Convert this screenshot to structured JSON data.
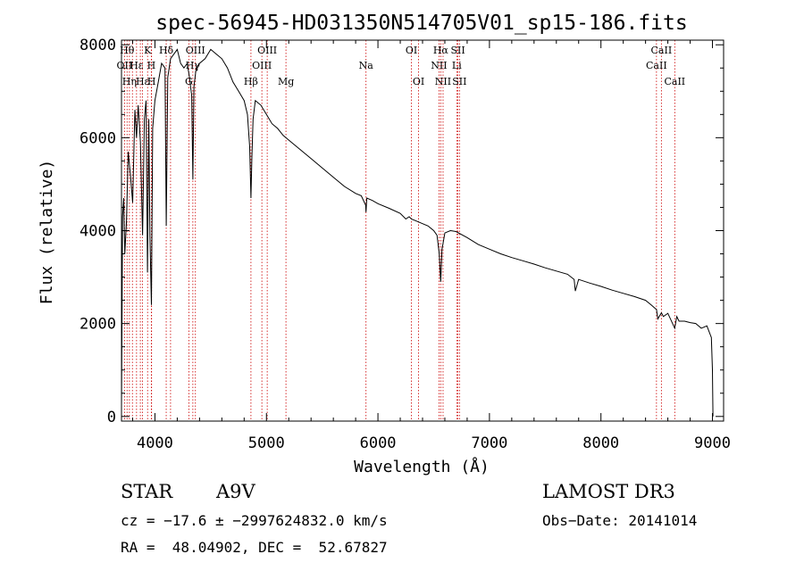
{
  "chart_data": {
    "type": "line",
    "title": "spec-56945-HD031350N514705V01_sp15-186.fits",
    "xlabel": "Wavelength (Å)",
    "ylabel": "Flux (relative)",
    "xlim": [
      3700,
      9100
    ],
    "ylim": [
      -100,
      8100
    ],
    "xticks": [
      4000,
      5000,
      6000,
      7000,
      8000,
      9000
    ],
    "yticks": [
      0,
      2000,
      4000,
      6000,
      8000
    ],
    "series": [
      {
        "name": "spectrum",
        "color": "#000000",
        "x": [
          3700,
          3710,
          3720,
          3730,
          3745,
          3760,
          3780,
          3800,
          3820,
          3835,
          3850,
          3870,
          3889,
          3905,
          3920,
          3933,
          3945,
          3955,
          3968,
          3980,
          4000,
          4030,
          4060,
          4090,
          4101,
          4115,
          4140,
          4170,
          4200,
          4230,
          4260,
          4290,
          4310,
          4330,
          4340,
          4350,
          4370,
          4400,
          4450,
          4500,
          4550,
          4600,
          4650,
          4700,
          4750,
          4800,
          4830,
          4850,
          4861,
          4870,
          4880,
          4900,
          4950,
          5000,
          5050,
          5100,
          5150,
          5200,
          5300,
          5400,
          5500,
          5600,
          5700,
          5800,
          5850,
          5890,
          5893,
          5900,
          5950,
          6000,
          6100,
          6200,
          6250,
          6280,
          6300,
          6350,
          6400,
          6450,
          6500,
          6530,
          6550,
          6563,
          6575,
          6600,
          6650,
          6700,
          6800,
          6900,
          7000,
          7100,
          7200,
          7300,
          7400,
          7500,
          7600,
          7700,
          7760,
          7770,
          7800,
          7900,
          8000,
          8100,
          8200,
          8300,
          8400,
          8450,
          8498,
          8510,
          8542,
          8560,
          8600,
          8662,
          8680,
          8700,
          8750,
          8800,
          8850,
          8900,
          8950,
          8990,
          9000,
          9005
        ],
        "y": [
          200,
          4300,
          4700,
          3500,
          4200,
          5700,
          5200,
          4600,
          6600,
          6000,
          6700,
          5900,
          3900,
          6400,
          6800,
          3100,
          6400,
          3900,
          2400,
          6200,
          6800,
          7200,
          7600,
          7500,
          4100,
          7300,
          7700,
          7800,
          7900,
          7600,
          7500,
          7600,
          7300,
          6900,
          5100,
          7100,
          7500,
          7600,
          7700,
          7900,
          7800,
          7700,
          7500,
          7200,
          7000,
          6800,
          6500,
          5800,
          4700,
          5600,
          6400,
          6800,
          6700,
          6500,
          6300,
          6200,
          6050,
          5950,
          5750,
          5550,
          5350,
          5150,
          4950,
          4800,
          4750,
          4550,
          4400,
          4700,
          4650,
          4580,
          4480,
          4370,
          4250,
          4300,
          4250,
          4200,
          4150,
          4100,
          4000,
          3900,
          3500,
          2900,
          3600,
          3950,
          4000,
          3980,
          3850,
          3700,
          3600,
          3500,
          3420,
          3350,
          3280,
          3200,
          3130,
          3060,
          2950,
          2700,
          2950,
          2870,
          2800,
          2720,
          2650,
          2580,
          2500,
          2400,
          2300,
          2100,
          2230,
          2150,
          2220,
          1900,
          2150,
          2050,
          2050,
          2020,
          2000,
          1900,
          1950,
          1700,
          1000,
          0
        ]
      }
    ],
    "lines": [
      {
        "wavelength": 3727,
        "label": "OII",
        "tier": 2
      },
      {
        "wavelength": 3750,
        "label": "Hθ",
        "tier": 1
      },
      {
        "wavelength": 3771,
        "label": "Hη",
        "tier": 3
      },
      {
        "wavelength": 3798,
        "label": "",
        "tier": 0
      },
      {
        "wavelength": 3835,
        "label": "Hε",
        "tier": 2
      },
      {
        "wavelength": 3869,
        "label": "",
        "tier": 0
      },
      {
        "wavelength": 3889,
        "label": "Hε",
        "tier": 3
      },
      {
        "wavelength": 3934,
        "label": "K",
        "tier": 1
      },
      {
        "wavelength": 3968,
        "label": "H",
        "tier": 2
      },
      {
        "wavelength": 3970,
        "label": "H",
        "tier": 3
      },
      {
        "wavelength": 4101,
        "label": "Hδ",
        "tier": 1
      },
      {
        "wavelength": 4140,
        "label": "",
        "tier": 0
      },
      {
        "wavelength": 4304,
        "label": "G",
        "tier": 3
      },
      {
        "wavelength": 4340,
        "label": "Hγ",
        "tier": 2
      },
      {
        "wavelength": 4363,
        "label": "OIII",
        "tier": 1
      },
      {
        "wavelength": 4861,
        "label": "Hβ",
        "tier": 3
      },
      {
        "wavelength": 4959,
        "label": "OIII",
        "tier": 2
      },
      {
        "wavelength": 5007,
        "label": "OIII",
        "tier": 1
      },
      {
        "wavelength": 5175,
        "label": "Mg",
        "tier": 3
      },
      {
        "wavelength": 5893,
        "label": "Na",
        "tier": 2
      },
      {
        "wavelength": 6300,
        "label": "OI",
        "tier": 1
      },
      {
        "wavelength": 6364,
        "label": "OI",
        "tier": 3
      },
      {
        "wavelength": 6548,
        "label": "NII",
        "tier": 2
      },
      {
        "wavelength": 6563,
        "label": "Hα",
        "tier": 1
      },
      {
        "wavelength": 6584,
        "label": "NII",
        "tier": 3
      },
      {
        "wavelength": 6707,
        "label": "Li",
        "tier": 2
      },
      {
        "wavelength": 6717,
        "label": "SII",
        "tier": 1
      },
      {
        "wavelength": 6731,
        "label": "SII",
        "tier": 3
      },
      {
        "wavelength": 8498,
        "label": "CaII",
        "tier": 2
      },
      {
        "wavelength": 8542,
        "label": "CaII",
        "tier": 1
      },
      {
        "wavelength": 8662,
        "label": "CaII",
        "tier": 3
      }
    ],
    "line_color": "#cc0000"
  },
  "info": {
    "type": "STAR",
    "subclass": "A9V",
    "survey": "LAMOST DR3",
    "cz": "cz = −17.6 ± −2997624832.0 km/s",
    "obs_date": "Obs−Date: 20141014",
    "radec": "RA =  48.04902, DEC =  52.67827"
  }
}
